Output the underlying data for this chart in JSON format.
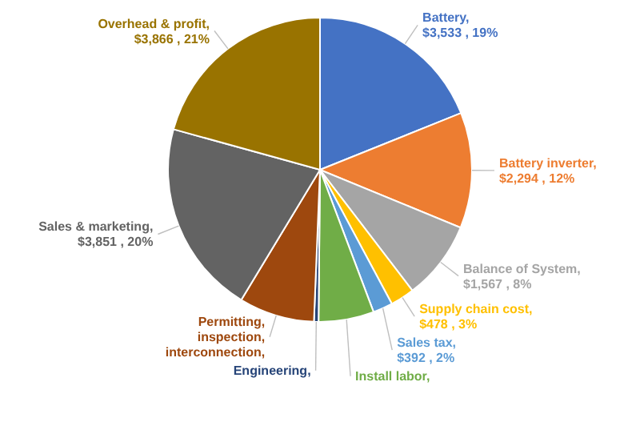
{
  "chart_data": {
    "type": "pie",
    "categories": [
      "Battery",
      "Battery inverter",
      "Balance of System",
      "Supply chain cost",
      "Sales tax",
      "Install labor",
      "Engineering",
      "Permitting, inspection, interconnection",
      "Sales & marketing",
      "Overhead & profit"
    ],
    "values": [
      3533,
      2294,
      1567,
      478,
      392,
      1100,
      90,
      1500,
      3851,
      3866
    ],
    "colors": [
      "#4472c4",
      "#ed7d31",
      "#a5a5a5",
      "#ffc000",
      "#5b9bd5",
      "#70ad47",
      "#264478",
      "#9e480e",
      "#636363",
      "#997300"
    ],
    "value_labels": [
      ", $3,533 , 19%",
      ", $2,294 , 12%",
      ", $1,567 , 8%",
      ", $478 , 3%",
      ", $392 , 2%",
      ",",
      ",",
      ",",
      ", $3,851 , 20%",
      ", $3,866 , 21%"
    ]
  }
}
